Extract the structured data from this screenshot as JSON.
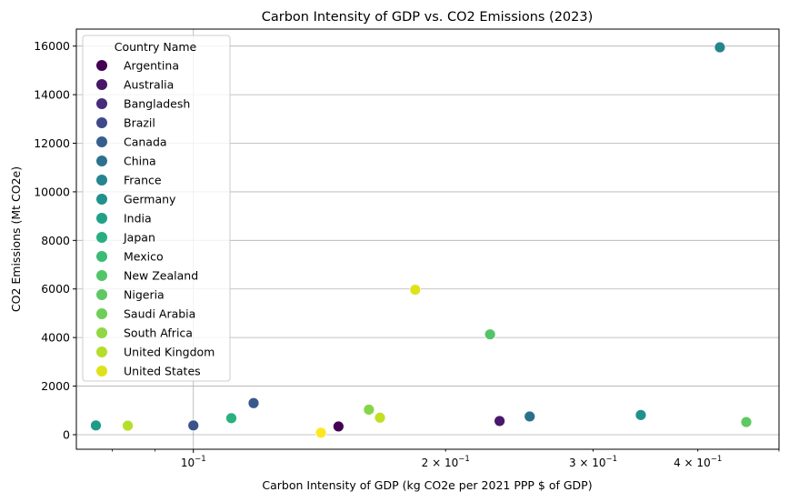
{
  "chart_data": {
    "type": "scatter",
    "title": "Carbon Intensity of GDP vs. CO2 Emissions (2023)",
    "xlabel": "Carbon Intensity of GDP (kg CO2e per 2021 PPP $ of GDP)",
    "ylabel": "CO2 Emissions (Mt CO2e)",
    "x_scale": "log",
    "xlim": [
      0.0725,
      0.5
    ],
    "ylim": [
      -600,
      16700
    ],
    "grid": true,
    "legend": {
      "title": "Country Name",
      "placement": "top-left"
    },
    "x_ticks": [
      {
        "value": 0.1,
        "base": "10",
        "exp": "−1",
        "mantissa": ""
      },
      {
        "value": 0.2,
        "base": "10",
        "exp": "−1",
        "mantissa": "2 × "
      },
      {
        "value": 0.3,
        "base": "10",
        "exp": "−1",
        "mantissa": "3 × "
      },
      {
        "value": 0.4,
        "base": "10",
        "exp": "−1",
        "mantissa": "4 × "
      }
    ],
    "x_minor_ticks": [
      0.08,
      0.09,
      0.5
    ],
    "y_ticks": [
      0,
      2000,
      4000,
      6000,
      8000,
      10000,
      12000,
      14000,
      16000
    ],
    "series": [
      {
        "name": "Argentina",
        "color": "#440154",
        "x": 0.149,
        "y": 339
      },
      {
        "name": "Australia",
        "color": "#48186a",
        "x": 0.232,
        "y": 564
      },
      {
        "name": "Bangladesh",
        "color": "#433d84",
        "x": 0.142,
        "y": 93
      },
      {
        "name": "Brazil",
        "color": "#38598c",
        "x": 0.118,
        "y": 1300
      },
      {
        "name": "Canada",
        "color": "#2d708e",
        "x": 0.252,
        "y": 750
      },
      {
        "name": "China",
        "color": "#25858e",
        "x": 0.425,
        "y": 15950
      },
      {
        "name": "France",
        "color": "#1e9b8a",
        "x": 0.0765,
        "y": 380
      },
      {
        "name": "Germany",
        "color": "#2ab07f",
        "x": 0.111,
        "y": 680
      },
      {
        "name": "India",
        "color": "#52c569",
        "x": 0.226,
        "y": 4130
      },
      {
        "name": "Japan",
        "color": "#86d549",
        "x": 0.162,
        "y": 1030
      },
      {
        "name": "Mexico",
        "color": "#c2df23",
        "x": 0.167,
        "y": 700
      },
      {
        "name": "New Zealand",
        "color": "#fde725",
        "x": 0.142,
        "y": 80
      },
      {
        "name": "Nigeria",
        "color": "#3b528b",
        "x": 0.1,
        "y": 380
      },
      {
        "name": "Saudi Arabia",
        "color": "#21918c",
        "x": 0.342,
        "y": 810
      },
      {
        "name": "South Africa",
        "color": "#5ec962",
        "x": 0.457,
        "y": 520
      },
      {
        "name": "United Kingdom",
        "color": "#b5de2b",
        "x": 0.0835,
        "y": 370
      },
      {
        "name": "United States",
        "color": "#dde318",
        "x": 0.184,
        "y": 5970
      }
    ],
    "legend_colors": [
      "#440154",
      "#481668",
      "#472d7b",
      "#3e4989",
      "#35608d",
      "#2c728e",
      "#25848e",
      "#21918c",
      "#1fa188",
      "#28ae80",
      "#3bbb75",
      "#52c569",
      "#5ec962",
      "#6ece58",
      "#90d743",
      "#b5de2b",
      "#dde318"
    ]
  }
}
